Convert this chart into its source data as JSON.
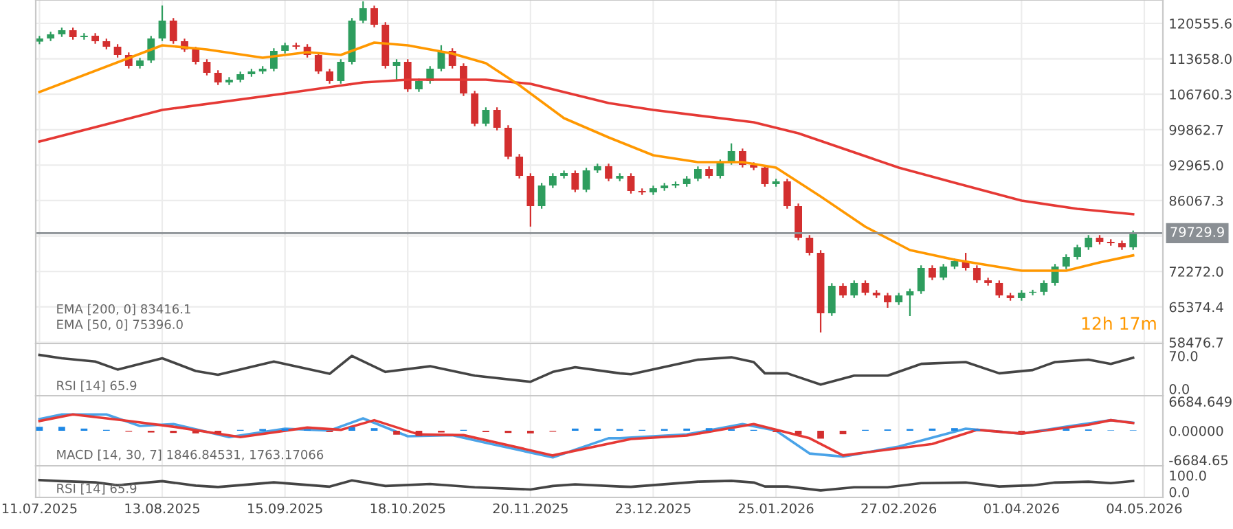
{
  "chart_data": [
    {
      "type": "candlestick",
      "colors": [
        "#2e9d5e",
        "#2e9d5e",
        "#2e9d5e",
        "#d32f2f",
        "#2e9d5e",
        "#d32f2f",
        "#d32f2f",
        "#d32f2f",
        "#d32f2f",
        "#2e9d5e",
        "#2e9d5e",
        "#2e9d5e",
        "#d32f2f",
        "#d32f2f",
        "#d32f2f",
        "#d32f2f",
        "#d32f2f",
        "#2e9d5e",
        "#2e9d5e",
        "#2e9d5e",
        "#2e9d5e",
        "#2e9d5e",
        "#2e9d5e",
        "#d32f2f",
        "#d32f2f",
        "#d32f2f",
        "#d32f2f",
        "#2e9d5e",
        "#2e9d5e",
        "#2e9d5e",
        "#d32f2f",
        "#d32f2f",
        "#2e9d5e",
        "#d32f2f",
        "#2e9d5e",
        "#2e9d5e",
        "#2e9d5e",
        "#d32f2f",
        "#d32f2f",
        "#d32f2f",
        "#2e9d5e",
        "#d32f2f",
        "#d32f2f",
        "#d32f2f",
        "#d32f2f",
        "#2e9d5e",
        "#2e9d5e",
        "#2e9d5e",
        "#d32f2f",
        "#2e9d5e",
        "#2e9d5e",
        "#d32f2f",
        "#2e9d5e",
        "#d32f2f",
        "#d32f2f",
        "#2e9d5e",
        "#2e9d5e",
        "#2e9d5e",
        "#2e9d5e",
        "#2e9d5e",
        "#d32f2f",
        "#2e9d5e",
        "#2e9d5e",
        "#d32f2f",
        "#d32f2f",
        "#d32f2f",
        "#2e9d5e",
        "#d32f2f",
        "#d32f2f",
        "#d32f2f",
        "#d32f2f",
        "#2e9d5e",
        "#d32f2f",
        "#2e9d5e",
        "#d32f2f",
        "#d32f2f",
        "#d32f2f",
        "#2e9d5e",
        "#2e9d5e",
        "#2e9d5e",
        "#d32f2f",
        "#2e9d5e",
        "#2e9d5e",
        "#d32f2f",
        "#d32f2f",
        "#d32f2f",
        "#d32f2f",
        "#d32f2f",
        "#2e9d5e",
        "#2e9d5e",
        "#2e9d5e",
        "#2e9d5e",
        "#2e9d5e",
        "#2e9d5e",
        "#2e9d5e",
        "#d32f2f",
        "#d32f2f",
        "#d32f2f",
        "#2e9d5e"
      ],
      "x": [
        "2025-07-11",
        "2025-07-14",
        "2025-07-17",
        "2025-07-20",
        "2025-07-23",
        "2025-07-26",
        "2025-07-29",
        "2025-08-01",
        "2025-08-04",
        "2025-08-07",
        "2025-08-10",
        "2025-08-13",
        "2025-08-16",
        "2025-08-19",
        "2025-08-22",
        "2025-08-25",
        "2025-08-28",
        "2025-08-31",
        "2025-09-03",
        "2025-09-06",
        "2025-09-09",
        "2025-09-12",
        "2025-09-15",
        "2025-09-18",
        "2025-09-21",
        "2025-09-24",
        "2025-09-27",
        "2025-09-30",
        "2025-10-03",
        "2025-10-06",
        "2025-10-09",
        "2025-10-12",
        "2025-10-15",
        "2025-10-18",
        "2025-10-21",
        "2025-10-24",
        "2025-10-27",
        "2025-10-30",
        "2025-11-02",
        "2025-11-05",
        "2025-11-08",
        "2025-11-11",
        "2025-11-14",
        "2025-11-17",
        "2025-11-20",
        "2025-11-23",
        "2025-11-26",
        "2025-11-29",
        "2025-12-02",
        "2025-12-05",
        "2025-12-08",
        "2025-12-11",
        "2025-12-14",
        "2025-12-17",
        "2025-12-20",
        "2025-12-23",
        "2025-12-26",
        "2025-12-29",
        "2026-01-01",
        "2026-01-04",
        "2026-01-07",
        "2026-01-10",
        "2026-01-13",
        "2026-01-16",
        "2026-01-19",
        "2026-01-22",
        "2026-01-25",
        "2026-01-28",
        "2026-01-31",
        "2026-02-03",
        "2026-02-06",
        "2026-02-09",
        "2026-02-12",
        "2026-02-15",
        "2026-02-18",
        "2026-02-21",
        "2026-02-24",
        "2026-02-27",
        "2026-03-02",
        "2026-03-05",
        "2026-03-08",
        "2026-03-11",
        "2026-03-14",
        "2026-03-17",
        "2026-03-20",
        "2026-03-23",
        "2026-03-26",
        "2026-03-29",
        "2026-04-01",
        "2026-04-04",
        "2026-04-07",
        "2026-04-10",
        "2026-04-13",
        "2026-04-16",
        "2026-04-19",
        "2026-04-22",
        "2026-04-25",
        "2026-04-28",
        "2026-05-01"
      ],
      "ohlc": [
        [
          117000,
          118110,
          116500,
          117610
        ],
        [
          117610,
          118920,
          117110,
          118420
        ],
        [
          118420,
          119720,
          117920,
          119220
        ],
        [
          119220,
          119720,
          117380,
          117880
        ],
        [
          117880,
          118650,
          117380,
          118150
        ],
        [
          118150,
          118650,
          116580,
          117080
        ],
        [
          117080,
          117580,
          115510,
          116010
        ],
        [
          116010,
          116510,
          113900,
          114400
        ],
        [
          114400,
          114900,
          111770,
          112270
        ],
        [
          112270,
          113840,
          111770,
          113340
        ],
        [
          113340,
          118110,
          112840,
          117610
        ],
        [
          117610,
          124030,
          117110,
          121090
        ],
        [
          121090,
          121590,
          116580,
          117080
        ],
        [
          117080,
          117580,
          114980,
          115480
        ],
        [
          115480,
          115980,
          112570,
          113070
        ],
        [
          113070,
          113570,
          110430,
          110930
        ],
        [
          110930,
          111430,
          108560,
          109060
        ],
        [
          109060,
          110090,
          108560,
          109590
        ],
        [
          109590,
          111160,
          109090,
          110660
        ],
        [
          110660,
          111700,
          110160,
          111200
        ],
        [
          111200,
          112230,
          110700,
          111730
        ],
        [
          111730,
          115710,
          111230,
          115210
        ],
        [
          115210,
          116780,
          114710,
          116280
        ],
        [
          116280,
          116780,
          115510,
          116010
        ],
        [
          116010,
          116510,
          113900,
          114400
        ],
        [
          114400,
          114900,
          110700,
          111200
        ],
        [
          111200,
          111700,
          108820,
          109320
        ],
        [
          109320,
          113570,
          108820,
          113070
        ],
        [
          113070,
          121590,
          112570,
          121090
        ],
        [
          121090,
          124830,
          120590,
          123500
        ],
        [
          123500,
          124000,
          119790,
          120290
        ],
        [
          120290,
          120790,
          111770,
          112270
        ],
        [
          112270,
          113570,
          109500,
          113070
        ],
        [
          113070,
          113570,
          107220,
          107720
        ],
        [
          107720,
          109820,
          107220,
          109320
        ],
        [
          109320,
          112230,
          108820,
          111730
        ],
        [
          111730,
          116300,
          111230,
          115210
        ],
        [
          115210,
          115710,
          111770,
          112270
        ],
        [
          112270,
          112770,
          106420,
          106920
        ],
        [
          106920,
          107420,
          100540,
          101040
        ],
        [
          101040,
          104210,
          100540,
          103710
        ],
        [
          103710,
          104210,
          99730,
          100230
        ],
        [
          100230,
          100730,
          94120,
          94620
        ],
        [
          94620,
          95120,
          90370,
          90870
        ],
        [
          90870,
          91370,
          81000,
          84990
        ],
        [
          84990,
          89500,
          84490,
          89000
        ],
        [
          89000,
          91370,
          88500,
          90870
        ],
        [
          90870,
          91910,
          90370,
          91410
        ],
        [
          91410,
          91910,
          87700,
          88200
        ],
        [
          88200,
          92440,
          87700,
          91940
        ],
        [
          91940,
          93250,
          91440,
          92750
        ],
        [
          92750,
          93250,
          89840,
          90340
        ],
        [
          90340,
          91370,
          89840,
          90870
        ],
        [
          90870,
          91370,
          87430,
          87930
        ],
        [
          87930,
          88430,
          87170,
          87670
        ],
        [
          87670,
          88970,
          87170,
          88470
        ],
        [
          88470,
          89500,
          87970,
          89000
        ],
        [
          89000,
          89770,
          88500,
          89270
        ],
        [
          89270,
          90840,
          88770,
          90340
        ],
        [
          90340,
          92710,
          89840,
          92210
        ],
        [
          92210,
          92710,
          90370,
          90870
        ],
        [
          90870,
          94050,
          90370,
          93550
        ],
        [
          93550,
          97200,
          93050,
          95690
        ],
        [
          95690,
          96190,
          92510,
          93010
        ],
        [
          93010,
          93510,
          91980,
          92480
        ],
        [
          92480,
          92980,
          88770,
          89270
        ],
        [
          89270,
          90300,
          88770,
          89800
        ],
        [
          89800,
          90300,
          84490,
          84990
        ],
        [
          84990,
          85490,
          78340,
          78840
        ],
        [
          78840,
          79340,
          75400,
          75900
        ],
        [
          75900,
          76400,
          60400,
          64130
        ],
        [
          64130,
          69980,
          63630,
          69480
        ],
        [
          69480,
          69980,
          67110,
          67610
        ],
        [
          67610,
          70520,
          67110,
          70020
        ],
        [
          70020,
          70520,
          67640,
          68140
        ],
        [
          68140,
          68640,
          67110,
          67610
        ],
        [
          67610,
          68110,
          65200,
          66270
        ],
        [
          66270,
          68110,
          65770,
          67610
        ],
        [
          67610,
          68910,
          63600,
          68410
        ],
        [
          68410,
          73460,
          67910,
          72960
        ],
        [
          72960,
          73460,
          70590,
          71090
        ],
        [
          71090,
          73730,
          70590,
          73230
        ],
        [
          73230,
          74790,
          72730,
          74290
        ],
        [
          74290,
          75900,
          72460,
          72960
        ],
        [
          72960,
          73460,
          70050,
          70550
        ],
        [
          70550,
          71050,
          69520,
          70020
        ],
        [
          70020,
          70520,
          67110,
          67610
        ],
        [
          67610,
          68110,
          66580,
          67080
        ],
        [
          67080,
          68640,
          66580,
          68140
        ],
        [
          68140,
          68700,
          67640,
          68300
        ],
        [
          68300,
          70520,
          67640,
          70020
        ],
        [
          70020,
          73730,
          69520,
          73230
        ],
        [
          73230,
          75600,
          72730,
          75100
        ],
        [
          75100,
          77470,
          74600,
          76970
        ],
        [
          76970,
          79340,
          76470,
          78840
        ],
        [
          78840,
          79340,
          77540,
          78040
        ],
        [
          78040,
          78540,
          77270,
          77770
        ],
        [
          77770,
          78270,
          76470,
          76970
        ],
        [
          76970,
          80230,
          76470,
          79729.9
        ]
      ],
      "series": [
        {
          "type": "line",
          "color": "#e53935",
          "x": [
            "2025-07-11",
            "2025-08-13",
            "2025-09-15",
            "2025-10-06",
            "2025-10-18",
            "2025-11-08",
            "2025-11-20",
            "2025-12-11",
            "2025-12-23",
            "2026-01-19",
            "2026-01-31",
            "2026-02-27",
            "2026-03-14",
            "2026-04-01",
            "2026-04-16",
            "2026-05-01"
          ],
          "values": [
            97560,
            103710,
            106920,
            109060,
            109590,
            109590,
            108790,
            105050,
            103710,
            101300,
            99160,
            92480,
            89540,
            86060,
            84460,
            83416.1
          ]
        },
        {
          "type": "line",
          "color": "#ff9800",
          "x": [
            "2025-07-11",
            "2025-08-13",
            "2025-08-25",
            "2025-09-09",
            "2025-09-21",
            "2025-09-30",
            "2025-10-09",
            "2025-10-18",
            "2025-10-30",
            "2025-11-08",
            "2025-11-17",
            "2025-11-29",
            "2025-12-11",
            "2025-12-23",
            "2026-01-04",
            "2026-01-16",
            "2026-01-25",
            "2026-02-06",
            "2026-02-18",
            "2026-03-02",
            "2026-03-14",
            "2026-04-01",
            "2026-04-13",
            "2026-04-22",
            "2026-05-01"
          ],
          "values": [
            107180,
            116280,
            115480,
            113870,
            114940,
            114400,
            116810,
            116280,
            114670,
            112800,
            108520,
            102100,
            98360,
            94890,
            93550,
            93550,
            92480,
            86860,
            80980,
            76430,
            74560,
            72420,
            72420,
            74030,
            75396.0
          ]
        }
      ],
      "xlim": [
        "2025-07-10",
        "2026-05-09"
      ],
      "ylim": [
        58250,
        125100
      ],
      "yticks": [
        58476.7,
        65374.4,
        {
          "value": 72272,
          "label": "72272.0"
        },
        {
          "value": 79169.6,
          "label": null
        },
        86067.3,
        {
          "value": 92965,
          "label": "92965.0"
        },
        99862.7,
        106760.3,
        {
          "value": 113658,
          "label": "113658.0"
        },
        120555.6
      ],
      "ref_lines": [
        {
          "axis": "y",
          "value": 79729.9,
          "label": "79729.9",
          "color": "#8a8f94"
        }
      ],
      "grid": true,
      "tick_labels": "y",
      "xticks": [
        {
          "value": "2025-07-11",
          "label": null
        },
        {
          "value": "2025-08-13",
          "label": null
        },
        {
          "value": "2025-09-15",
          "label": null
        },
        {
          "value": "2025-10-18",
          "label": null
        },
        {
          "value": "2025-11-20",
          "label": null
        },
        {
          "value": "2025-12-23",
          "label": null
        },
        {
          "value": "2026-01-25",
          "label": null
        },
        {
          "value": "2026-02-27",
          "label": null
        },
        {
          "value": "2026-04-01",
          "label": null
        },
        {
          "value": "2026-05-04",
          "label": null
        }
      ],
      "annotations": [
        "EMA [200, 0] 83416.1",
        "EMA [50, 0] 75396.0",
        "12h 17m"
      ]
    },
    {
      "type": "line",
      "series": [
        {
          "type": "line",
          "color": "#444444",
          "x": [
            "2025-07-11",
            "2025-07-17",
            "2025-07-26",
            "2025-08-01",
            "2025-08-13",
            "2025-08-22",
            "2025-08-28",
            "2025-09-12",
            "2025-09-27",
            "2025-10-03",
            "2025-10-12",
            "2025-10-24",
            "2025-11-05",
            "2025-11-20",
            "2025-11-26",
            "2025-12-02",
            "2025-12-14",
            "2025-12-17",
            "2026-01-04",
            "2026-01-13",
            "2026-01-19",
            "2026-01-22",
            "2026-01-28",
            "2026-02-06",
            "2026-02-15",
            "2026-02-24",
            "2026-03-05",
            "2026-03-17",
            "2026-03-26",
            "2026-04-04",
            "2026-04-10",
            "2026-04-19",
            "2026-04-25",
            "2026-05-01"
          ],
          "values": [
            72,
            65,
            58,
            41,
            65,
            38,
            30,
            58,
            32,
            70,
            36,
            48,
            28,
            15,
            36,
            46,
            33,
            31,
            62,
            67,
            57,
            33,
            33,
            9,
            28,
            28,
            53,
            57,
            33,
            40,
            57,
            62,
            53,
            65.9
          ]
        }
      ],
      "xlim": [
        "2025-07-10",
        "2026-05-09"
      ],
      "ylim": [
        -14.6,
        96.3
      ],
      "yticks": [
        {
          "value": 0,
          "label": "0.0"
        },
        {
          "value": 70,
          "label": "70.0"
        }
      ],
      "grid": "x",
      "tick_labels": "y",
      "xticks": [
        {
          "value": "2025-07-11",
          "label": null
        },
        {
          "value": "2025-08-13",
          "label": null
        },
        {
          "value": "2025-09-15",
          "label": null
        },
        {
          "value": "2025-10-18",
          "label": null
        },
        {
          "value": "2025-11-20",
          "label": null
        },
        {
          "value": "2025-12-23",
          "label": null
        },
        {
          "value": "2026-01-25",
          "label": null
        },
        {
          "value": "2026-02-27",
          "label": null
        },
        {
          "value": "2026-04-01",
          "label": null
        },
        {
          "value": "2026-05-04",
          "label": null
        }
      ],
      "annotations": [
        "RSI [14] 65.9"
      ]
    },
    {
      "type": "line",
      "series": [
        {
          "type": "bar",
          "x": [
            "2025-07-11",
            "2025-07-17",
            "2025-07-23",
            "2025-07-29",
            "2025-08-04",
            "2025-08-10",
            "2025-08-16",
            "2025-08-22",
            "2025-08-28",
            "2025-09-03",
            "2025-09-09",
            "2025-09-15",
            "2025-09-21",
            "2025-09-27",
            "2025-10-03",
            "2025-10-09",
            "2025-10-15",
            "2025-10-21",
            "2025-10-27",
            "2025-11-02",
            "2025-11-08",
            "2025-11-14",
            "2025-11-20",
            "2025-11-26",
            "2025-12-02",
            "2025-12-08",
            "2025-12-14",
            "2025-12-20",
            "2025-12-26",
            "2026-01-01",
            "2026-01-07",
            "2026-01-13",
            "2026-01-19",
            "2026-01-25",
            "2026-01-31",
            "2026-02-06",
            "2026-02-12",
            "2026-02-18",
            "2026-02-24",
            "2026-03-02",
            "2026-03-08",
            "2026-03-14",
            "2026-03-20",
            "2026-03-26",
            "2026-04-01",
            "2026-04-07",
            "2026-04-13",
            "2026-04-19",
            "2026-04-25",
            "2026-05-01"
          ],
          "values": [
            900,
            900,
            500,
            200,
            -200,
            -400,
            -500,
            -600,
            -600,
            200,
            400,
            500,
            300,
            -300,
            800,
            600,
            -900,
            -1200,
            -400,
            200,
            -300,
            -500,
            -600,
            -200,
            500,
            500,
            400,
            200,
            400,
            500,
            600,
            400,
            200,
            -300,
            -900,
            -1800,
            -800,
            200,
            300,
            400,
            500,
            600,
            400,
            -300,
            -300,
            100,
            500,
            300,
            100,
            100
          ],
          "colors": [
            "#1e88e5",
            "#1e88e5",
            "#1e88e5",
            "#1e88e5",
            "#d32f2f",
            "#d32f2f",
            "#d32f2f",
            "#d32f2f",
            "#d32f2f",
            "#1e88e5",
            "#1e88e5",
            "#1e88e5",
            "#1e88e5",
            "#d32f2f",
            "#1e88e5",
            "#1e88e5",
            "#d32f2f",
            "#d32f2f",
            "#d32f2f",
            "#1e88e5",
            "#d32f2f",
            "#d32f2f",
            "#d32f2f",
            "#d32f2f",
            "#1e88e5",
            "#1e88e5",
            "#1e88e5",
            "#1e88e5",
            "#1e88e5",
            "#1e88e5",
            "#1e88e5",
            "#1e88e5",
            "#1e88e5",
            "#d32f2f",
            "#d32f2f",
            "#d32f2f",
            "#d32f2f",
            "#1e88e5",
            "#1e88e5",
            "#1e88e5",
            "#1e88e5",
            "#1e88e5",
            "#1e88e5",
            "#d32f2f",
            "#d32f2f",
            "#1e88e5",
            "#1e88e5",
            "#1e88e5",
            "#1e88e5",
            "#1e88e5"
          ]
        },
        {
          "type": "line",
          "color": "#4aa3e8",
          "x": [
            "2025-07-11",
            "2025-07-17",
            "2025-07-29",
            "2025-08-07",
            "2025-08-16",
            "2025-08-31",
            "2025-09-15",
            "2025-09-27",
            "2025-10-06",
            "2025-10-18",
            "2025-10-30",
            "2025-11-08",
            "2025-11-26",
            "2025-12-11",
            "2025-12-14",
            "2026-01-01",
            "2026-01-16",
            "2026-01-25",
            "2026-02-03",
            "2026-02-12",
            "2026-02-27",
            "2026-03-17",
            "2026-04-01",
            "2026-04-13",
            "2026-04-25",
            "2026-05-01"
          ],
          "values": [
            2670,
            3720,
            3720,
            1100,
            1520,
            -1440,
            470,
            50,
            2830,
            -1260,
            -1000,
            -2750,
            -6080,
            -1700,
            -1700,
            -840,
            1520,
            50,
            -5190,
            -5900,
            -3620,
            470,
            -650,
            920,
            2410,
            1846.84531
          ]
        },
        {
          "type": "line",
          "color": "#e53935",
          "x": [
            "2025-07-11",
            "2025-07-20",
            "2025-08-04",
            "2025-08-16",
            "2025-09-03",
            "2025-09-21",
            "2025-09-30",
            "2025-10-09",
            "2025-10-21",
            "2025-11-02",
            "2025-11-26",
            "2025-12-17",
            "2026-01-01",
            "2026-01-19",
            "2026-02-03",
            "2026-02-12",
            "2026-03-08",
            "2026-03-20",
            "2026-04-01",
            "2026-04-19",
            "2026-04-25",
            "2026-05-01"
          ],
          "values": [
            2230,
            3720,
            2230,
            920,
            -1440,
            730,
            210,
            2410,
            -840,
            -1000,
            -5630,
            -1890,
            -1100,
            1520,
            -1700,
            -5630,
            -3010,
            210,
            -650,
            1360,
            2410,
            1763.17066
          ]
        }
      ],
      "xlim": [
        "2025-07-10",
        "2026-05-09"
      ],
      "ylim": [
        -8000,
        8000
      ],
      "yticks": [
        {
          "value": -6684.65,
          "label": "-6684.65"
        },
        {
          "value": 0,
          "label": "0.00000"
        },
        {
          "value": 6684.649,
          "label": "6684.649"
        }
      ],
      "grid": "x",
      "tick_labels": "y",
      "xticks": [
        {
          "value": "2025-07-11",
          "label": null
        },
        {
          "value": "2025-08-13",
          "label": null
        },
        {
          "value": "2025-09-15",
          "label": null
        },
        {
          "value": "2025-10-18",
          "label": null
        },
        {
          "value": "2025-11-20",
          "label": null
        },
        {
          "value": "2025-12-23",
          "label": null
        },
        {
          "value": "2026-01-25",
          "label": null
        },
        {
          "value": "2026-02-27",
          "label": null
        },
        {
          "value": "2026-04-01",
          "label": null
        },
        {
          "value": "2026-05-04",
          "label": null
        }
      ],
      "annotations": [
        "MACD [14, 30, 7] 1846.84531, 1763.17066"
      ]
    },
    {
      "type": "line",
      "series": [
        {
          "type": "line",
          "color": "#444444",
          "x": [
            "2025-07-11",
            "2025-07-17",
            "2025-07-26",
            "2025-08-01",
            "2025-08-13",
            "2025-08-22",
            "2025-08-28",
            "2025-09-12",
            "2025-09-27",
            "2025-10-03",
            "2025-10-12",
            "2025-10-24",
            "2025-11-05",
            "2025-11-20",
            "2025-11-26",
            "2025-12-02",
            "2025-12-14",
            "2025-12-17",
            "2026-01-04",
            "2026-01-13",
            "2026-01-19",
            "2026-01-22",
            "2026-01-28",
            "2026-02-06",
            "2026-02-15",
            "2026-02-24",
            "2026-03-05",
            "2026-03-17",
            "2026-03-26",
            "2026-04-04",
            "2026-04-10",
            "2026-04-19",
            "2026-04-25",
            "2026-05-01"
          ],
          "values": [
            72,
            65,
            58,
            41,
            65,
            38,
            30,
            58,
            32,
            70,
            36,
            48,
            28,
            15,
            36,
            46,
            33,
            31,
            62,
            67,
            57,
            33,
            33,
            9,
            28,
            28,
            53,
            57,
            33,
            40,
            57,
            62,
            53,
            65.9
          ]
        }
      ],
      "xlim": [
        "2025-07-10",
        "2026-05-09"
      ],
      "ylim": [
        -33,
        158
      ],
      "yticks": [
        {
          "value": 0,
          "label": "0.0"
        },
        {
          "value": 100,
          "label": "100.0"
        }
      ],
      "grid": "x",
      "xticks": [
        {
          "value": "2025-07-11",
          "label": "11.07.2025"
        },
        {
          "value": "2025-08-13",
          "label": "13.08.2025"
        },
        {
          "value": "2025-09-15",
          "label": "15.09.2025"
        },
        {
          "value": "2025-10-18",
          "label": "18.10.2025"
        },
        {
          "value": "2025-11-20",
          "label": "20.11.2025"
        },
        {
          "value": "2025-12-23",
          "label": "23.12.2025"
        },
        {
          "value": "2026-01-25",
          "label": "25.01.2026"
        },
        {
          "value": "2026-02-27",
          "label": "27.02.2026"
        },
        {
          "value": "2026-04-01",
          "label": "01.04.2026"
        },
        {
          "value": "2026-05-04",
          "label": "04.05.2026"
        }
      ],
      "annotations": [
        "RSI [14] 65.9"
      ]
    }
  ]
}
